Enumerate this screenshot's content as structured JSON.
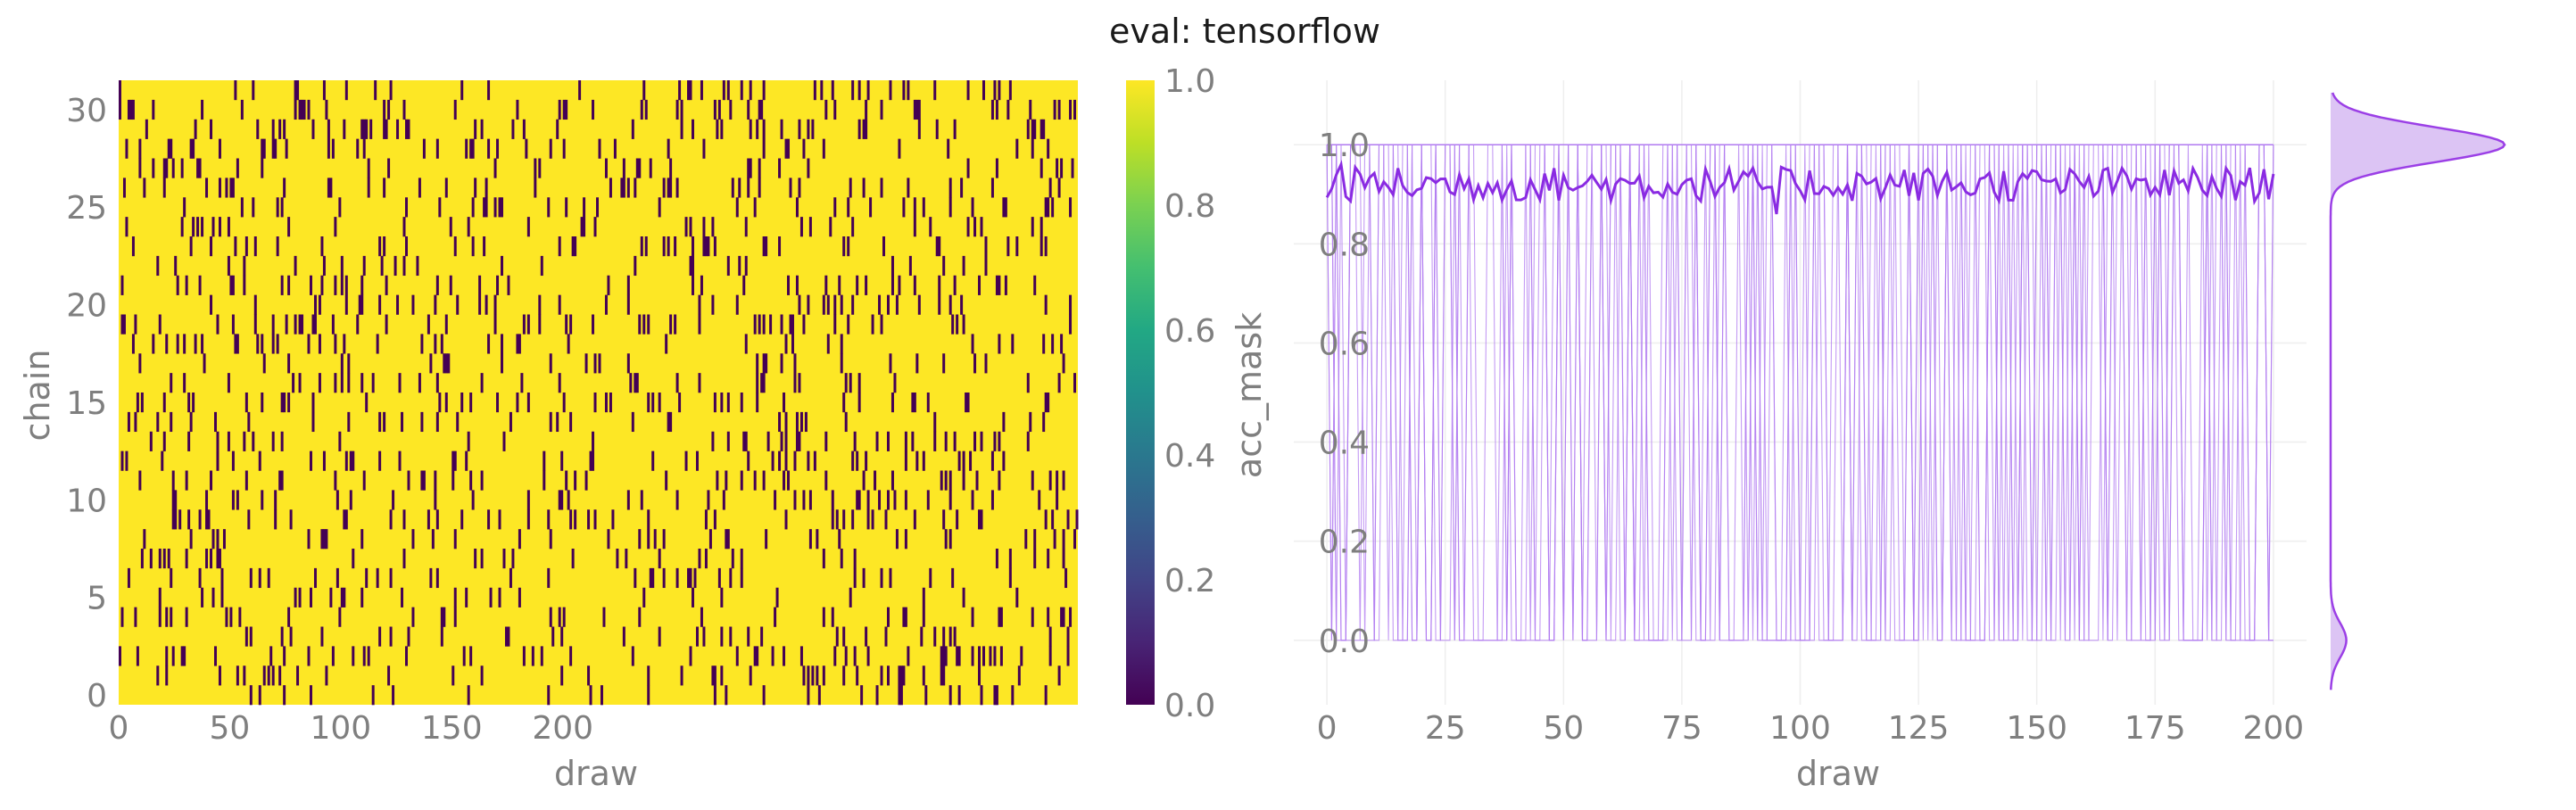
{
  "figure": {
    "suptitle": "eval: tensorflow"
  },
  "colors": {
    "yellow": "#fde725",
    "dark_purple": "#440154",
    "trace_thin": "#b07af0",
    "trace_mean": "#8a2be2",
    "kde_fill": "#dcc4f4",
    "kde_line": "#9b3fe6",
    "axis_text": "#7f7f7f",
    "grid": "#eeeeee"
  },
  "chart_data": [
    {
      "type": "heatmap",
      "xlabel": "draw",
      "ylabel": "chain",
      "xticks": [
        "0",
        "50",
        "100",
        "150",
        "200"
      ],
      "xtick_values": [
        0,
        50,
        100,
        150,
        200
      ],
      "yticks": [
        "0",
        "5",
        "10",
        "15",
        "20",
        "25",
        "30"
      ],
      "ytick_values": [
        0,
        5,
        10,
        15,
        20,
        25,
        30
      ],
      "xlim": [
        0,
        200
      ],
      "ylim": [
        -0.5,
        31.5
      ],
      "n_chains": 32,
      "n_draws": 200,
      "value_range": [
        0,
        1
      ],
      "dominant_value": 1,
      "zero_fraction": 0.08,
      "colorbar": {
        "label": "acc_mask",
        "ticks": [
          "0.0",
          "0.2",
          "0.4",
          "0.6",
          "0.8",
          "1.0"
        ],
        "tick_values": [
          0.0,
          0.2,
          0.4,
          0.6,
          0.8,
          1.0
        ],
        "colormap": "viridis"
      }
    },
    {
      "type": "line",
      "xlabel": "draw",
      "ylabel": "",
      "xticks": [
        "0",
        "25",
        "50",
        "75",
        "100",
        "125",
        "150",
        "175",
        "200"
      ],
      "xtick_values": [
        0,
        25,
        50,
        75,
        100,
        125,
        150,
        175,
        200
      ],
      "yticks": [
        "0.0",
        "0.2",
        "0.4",
        "0.6",
        "0.8",
        "1.0"
      ],
      "ytick_values": [
        0.0,
        0.2,
        0.4,
        0.6,
        0.8,
        1.0
      ],
      "xlim": [
        -7,
        207
      ],
      "ylim": [
        -0.13,
        1.13
      ],
      "grid": true,
      "series": [
        {
          "name": "",
          "description": "per-chain 0/1 acceptance traces",
          "values_range": [
            0,
            1
          ]
        },
        {
          "name": "",
          "description": "mean across chains",
          "mean_level": 0.92,
          "range": [
            0.86,
            0.97
          ]
        }
      ],
      "marginal": {
        "type": "kde",
        "orientation": "vertical",
        "peaks": [
          {
            "at": 1.0,
            "height": 1.0
          },
          {
            "at": 0.0,
            "height": 0.09
          }
        ]
      }
    }
  ]
}
